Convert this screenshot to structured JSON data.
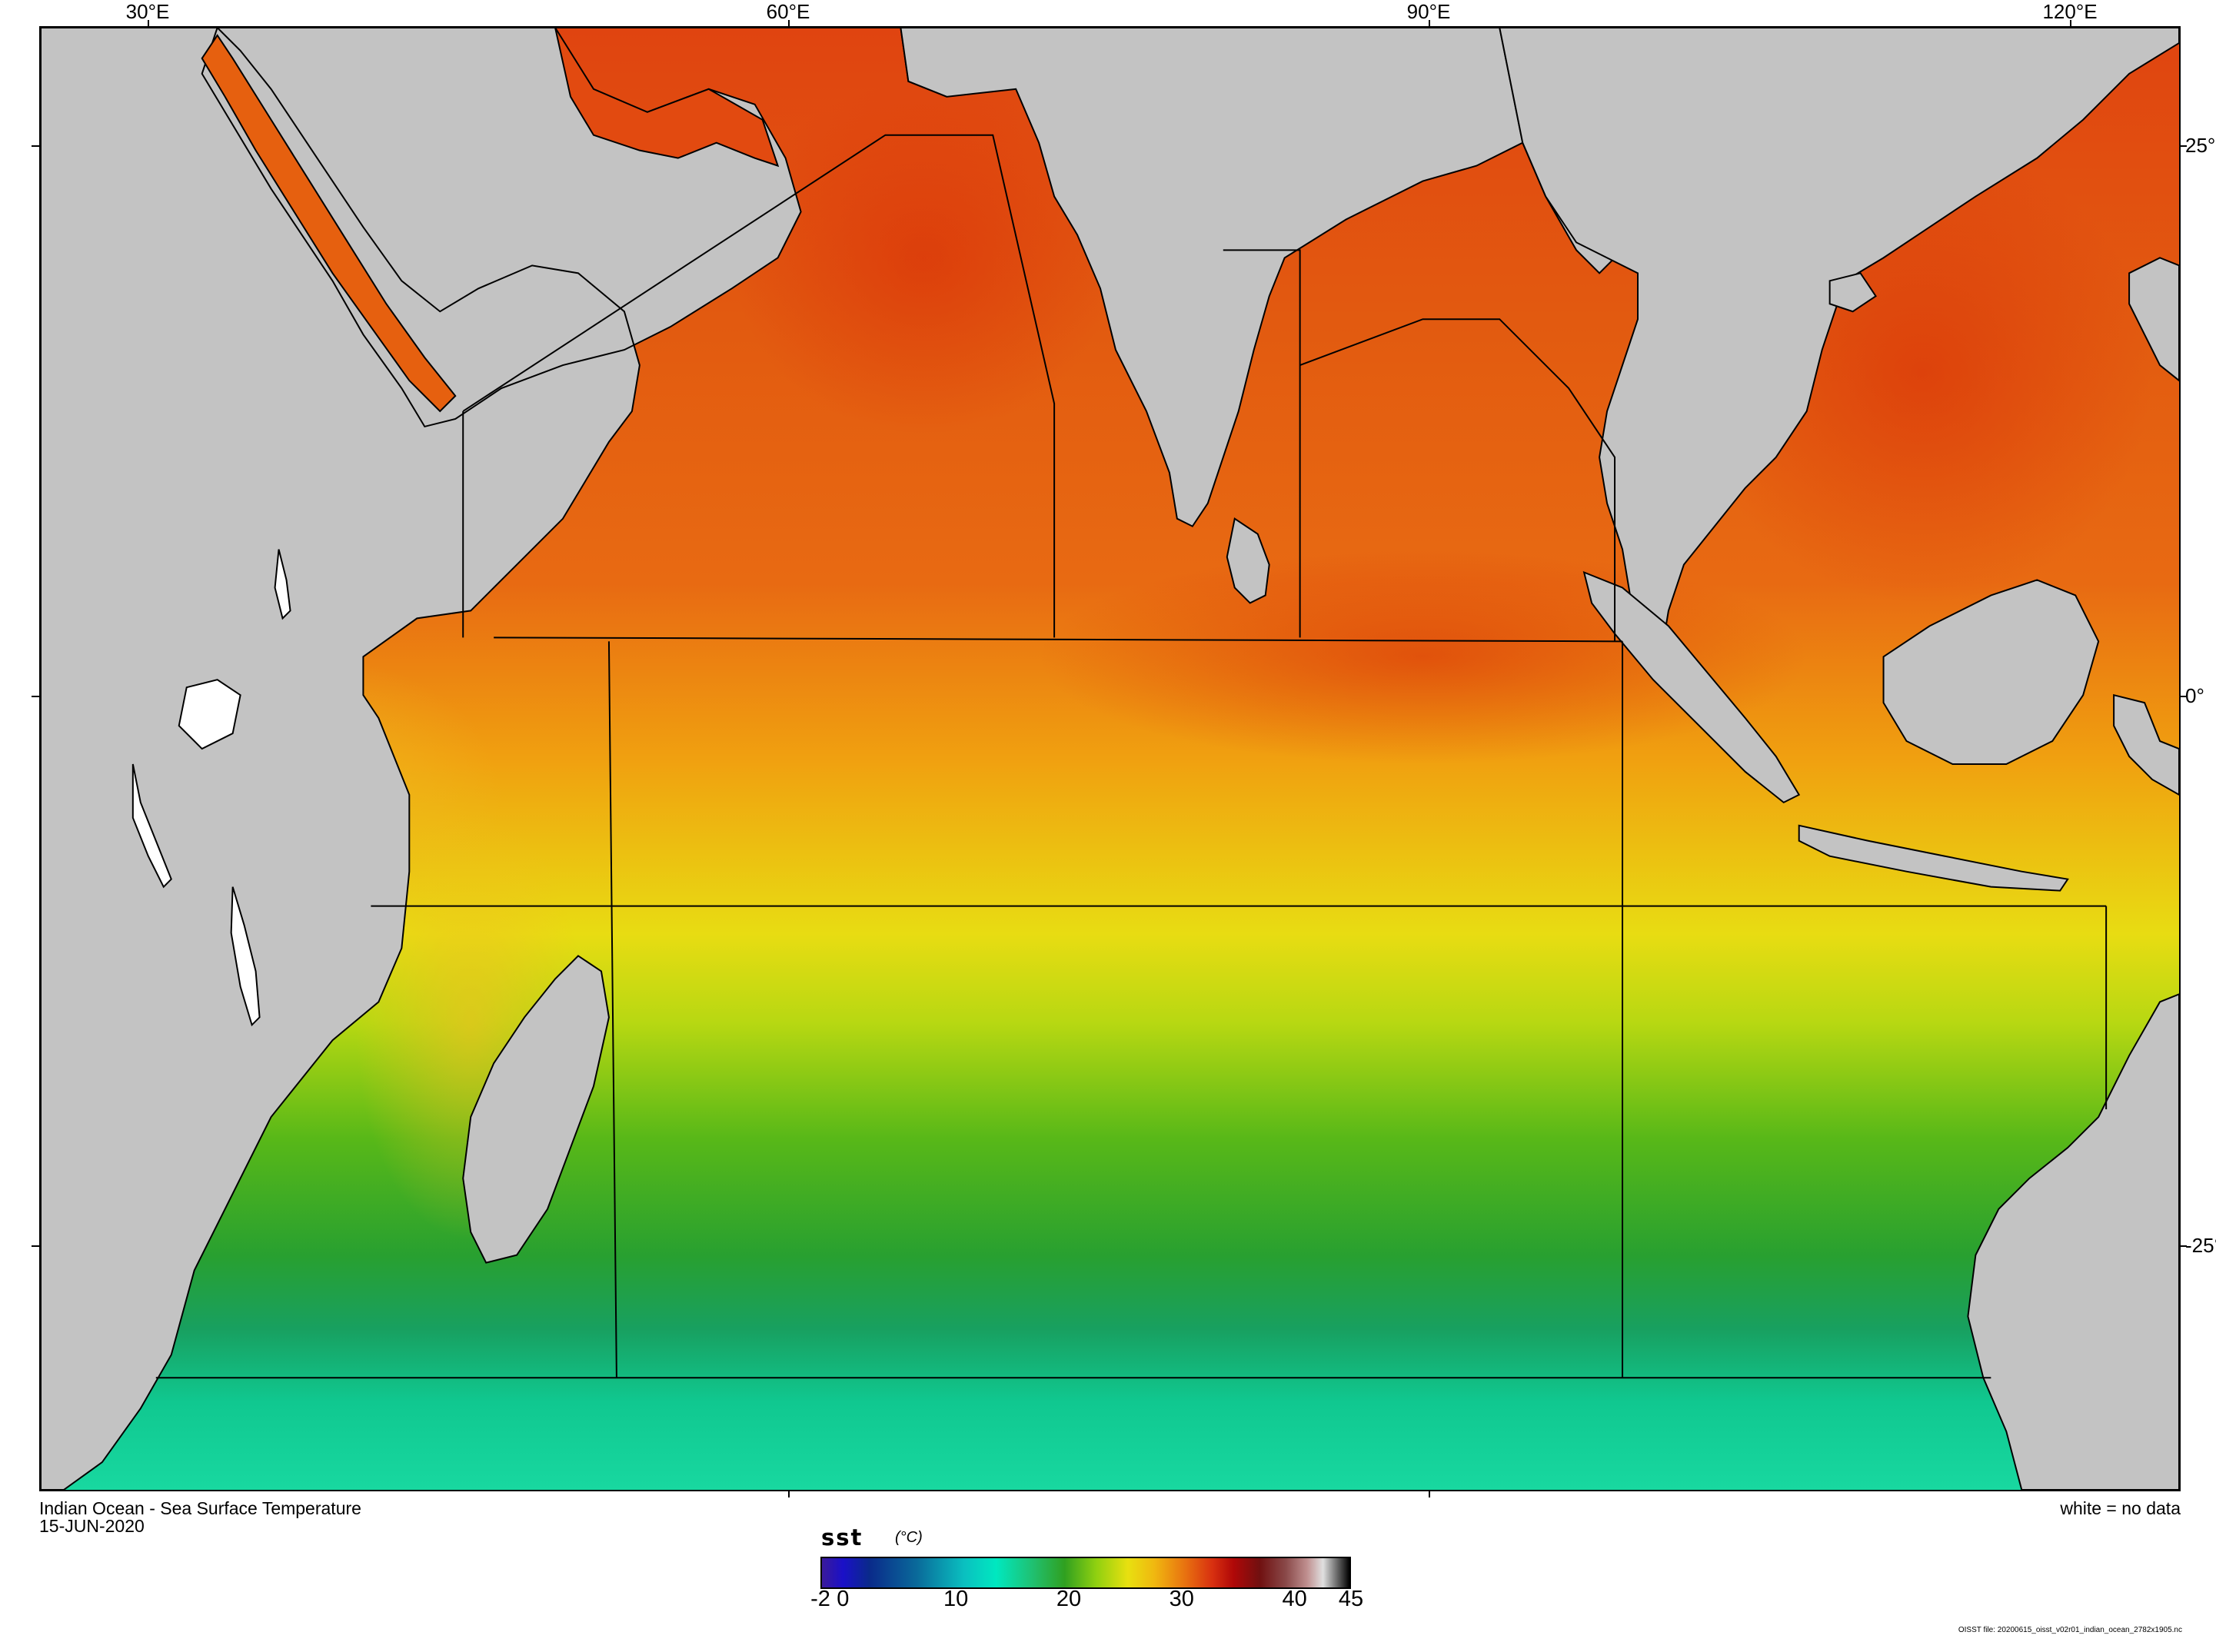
{
  "map": {
    "title": "Indian Ocean - Sea Surface Temperature",
    "date": "15-JUN-2020",
    "no_data_note": "white = no data",
    "file_note": "OISST file: 20200615_oisst_v02r01_indian_ocean_2782x1905.nc",
    "longitude_labels": [
      "30°E",
      "60°E",
      "90°E",
      "120°E"
    ],
    "latitude_labels": [
      "25°",
      "0°",
      "-25°"
    ],
    "land_color": "#c3c3c3",
    "no_data_color": "#ffffff"
  },
  "colorbar": {
    "variable": "sst",
    "unit": "(°C)",
    "range": [
      -2,
      45
    ],
    "tick_labels": [
      "-2",
      "0",
      "10",
      "20",
      "30",
      "40",
      "45"
    ],
    "tick_values": [
      -2,
      0,
      10,
      20,
      30,
      40,
      45
    ],
    "stops": [
      {
        "value": -2,
        "color": "#3a1a9a"
      },
      {
        "value": 5,
        "color": "#0a2a8a"
      },
      {
        "value": 12,
        "color": "#0ac0c0"
      },
      {
        "value": 17,
        "color": "#20c070"
      },
      {
        "value": 20,
        "color": "#30a020"
      },
      {
        "value": 25,
        "color": "#e8e010"
      },
      {
        "value": 29,
        "color": "#e87010"
      },
      {
        "value": 33,
        "color": "#b00808"
      },
      {
        "value": 38,
        "color": "#8a4a4a"
      },
      {
        "value": 43,
        "color": "#e0e0e0"
      },
      {
        "value": 45,
        "color": "#000000"
      }
    ]
  }
}
